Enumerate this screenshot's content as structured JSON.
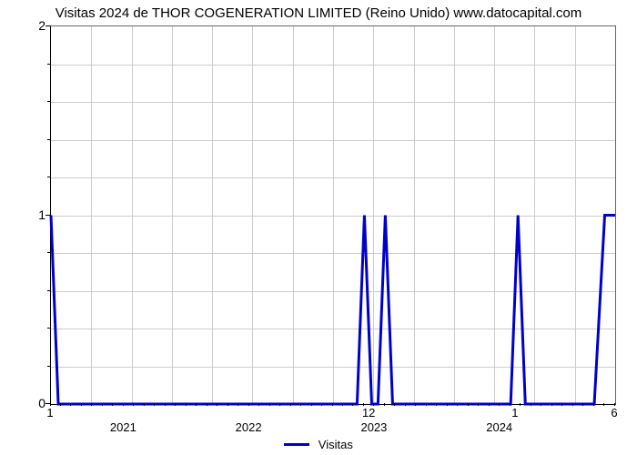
{
  "title": "Visitas 2024 de THOR COGENERATION LIMITED (Reino Unido) www.datocapital.com",
  "legend_label": "Visitas",
  "chart": {
    "type": "line",
    "line_color": "#0000cc",
    "line_width": 3,
    "background_color": "#ffffff",
    "grid_color": "#cccccc",
    "axis_color": "#000000",
    "title_fontsize": 15,
    "label_fontsize": 13,
    "ylim": [
      0,
      2
    ],
    "ytick_major": [
      0,
      1,
      2
    ],
    "ytick_minor_count": 9,
    "xlim": [
      0,
      54
    ],
    "year_marks": [
      {
        "label": "2021",
        "x": 7
      },
      {
        "label": "2022",
        "x": 19
      },
      {
        "label": "2023",
        "x": 31
      },
      {
        "label": "2024",
        "x": 43
      }
    ],
    "point_labels": [
      {
        "label": "1",
        "x": 0
      },
      {
        "label": "12",
        "x": 30.5
      },
      {
        "label": "1",
        "x": 44.5
      },
      {
        "label": "6",
        "x": 54
      }
    ],
    "series": [
      {
        "x": 0,
        "y": 1
      },
      {
        "x": 0.7,
        "y": 0
      },
      {
        "x": 29.3,
        "y": 0
      },
      {
        "x": 30,
        "y": 1
      },
      {
        "x": 30.7,
        "y": 0
      },
      {
        "x": 31.3,
        "y": 0
      },
      {
        "x": 32,
        "y": 1
      },
      {
        "x": 32.7,
        "y": 0
      },
      {
        "x": 44,
        "y": 0
      },
      {
        "x": 44.7,
        "y": 1
      },
      {
        "x": 45.4,
        "y": 0
      },
      {
        "x": 52,
        "y": 0
      },
      {
        "x": 53,
        "y": 1
      },
      {
        "x": 54,
        "y": 1
      }
    ],
    "hgrid_count": 10,
    "vgrid_count": 14
  }
}
